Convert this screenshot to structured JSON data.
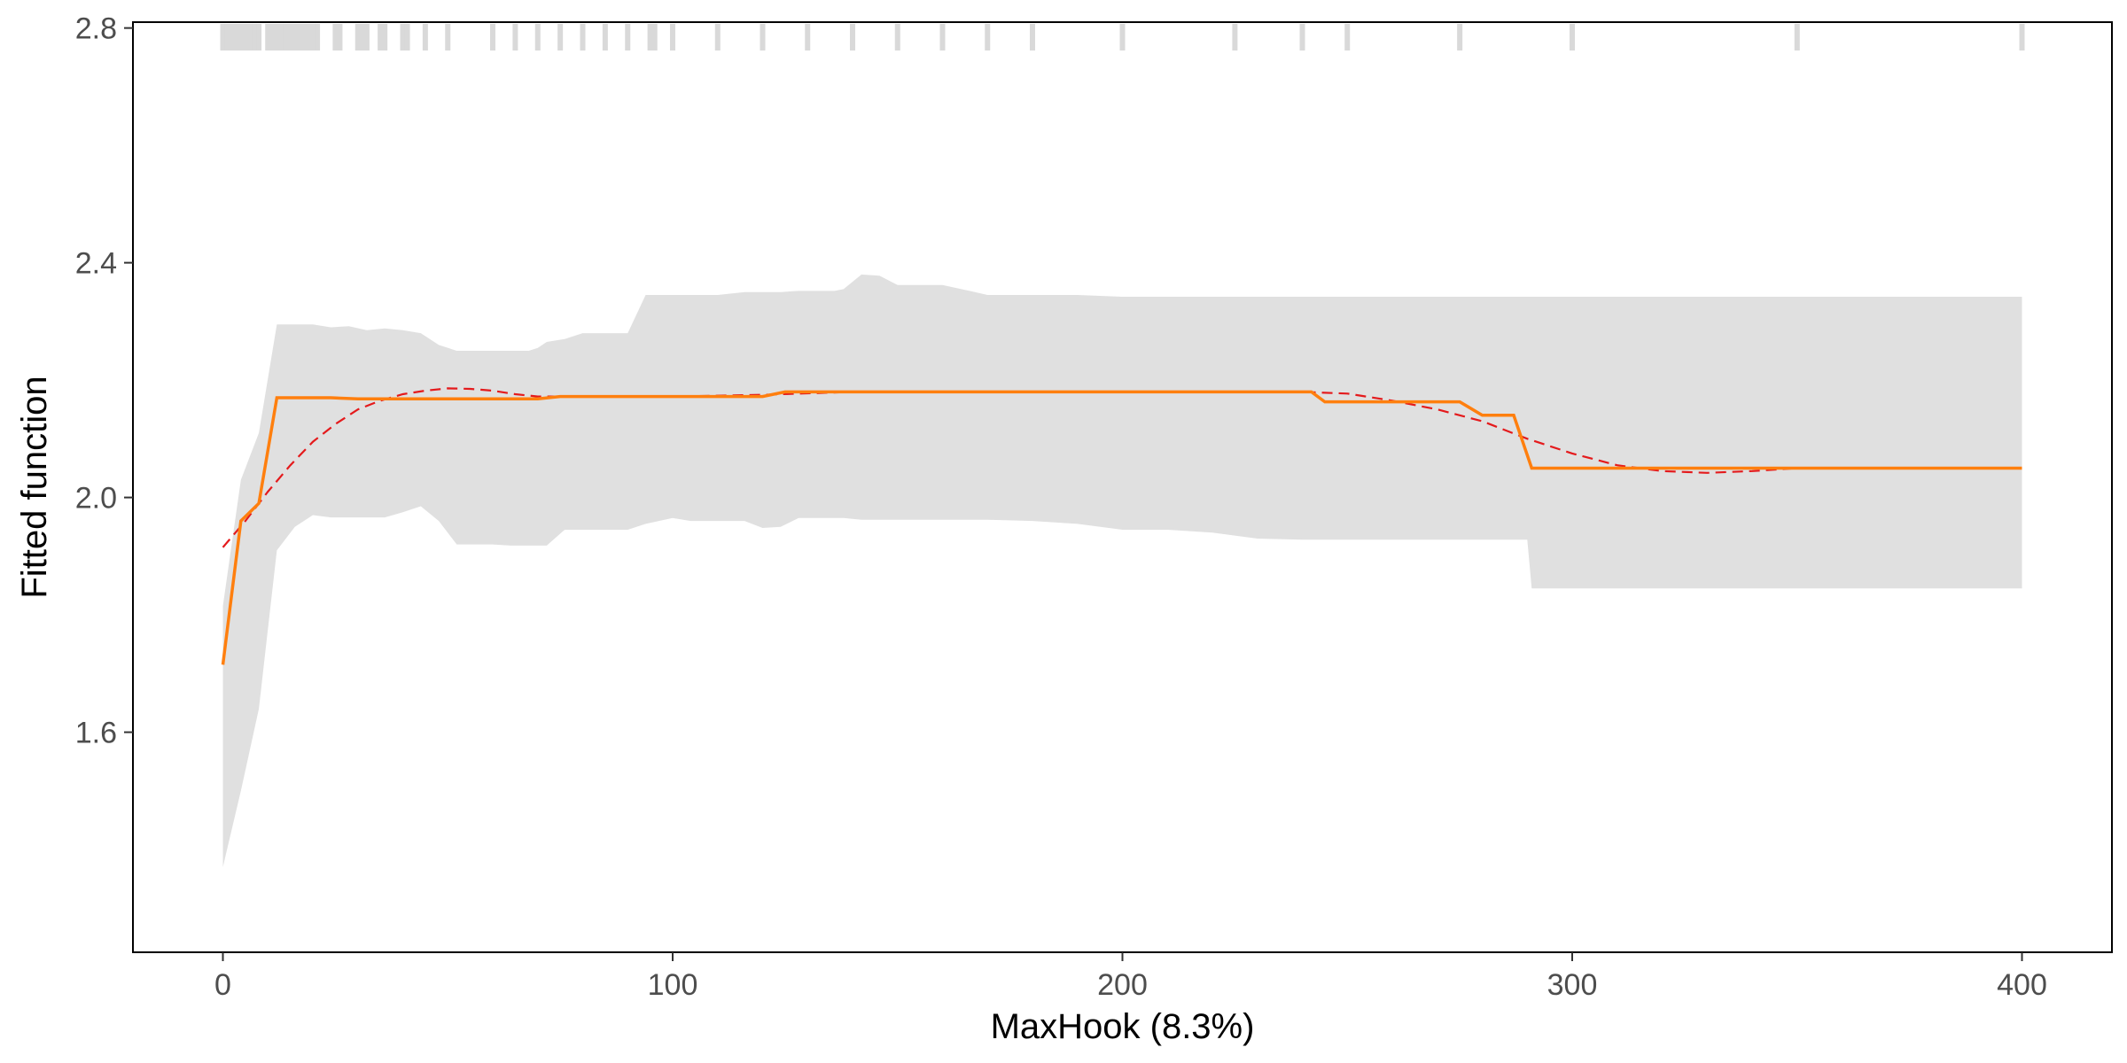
{
  "chart_data": {
    "type": "line",
    "xlabel": "MaxHook  (8.3%)",
    "ylabel": "Fitted function",
    "xlim": [
      -20,
      420
    ],
    "ylim": [
      1.225,
      2.81
    ],
    "x_ticks": [
      0,
      100,
      200,
      300,
      400
    ],
    "x_tick_labels": [
      "0",
      "100",
      "200",
      "300",
      "400"
    ],
    "y_ticks": [
      1.6,
      2.0,
      2.4,
      2.8
    ],
    "y_tick_labels": [
      "1.6",
      "2.0",
      "2.4",
      "2.8"
    ],
    "grid": false,
    "legend": "none",
    "colors": {
      "fitted": "#ff7f0e",
      "smooth": "#e41a1c",
      "band": "#e0e0e0",
      "rug": "#d9d9d9",
      "axis": "#000000"
    },
    "rug_x": [
      0,
      1,
      2,
      3,
      4,
      5,
      6,
      7,
      8,
      10,
      11,
      12,
      13,
      14,
      15,
      16,
      17,
      18,
      19,
      20,
      21,
      25,
      26,
      30,
      31,
      32,
      35,
      36,
      40,
      41,
      45,
      50,
      60,
      65,
      70,
      75,
      80,
      85,
      90,
      95,
      96,
      100,
      110,
      120,
      130,
      140,
      150,
      160,
      170,
      180,
      200,
      225,
      240,
      250,
      275,
      300,
      350,
      400
    ],
    "series": [
      {
        "name": "fitted",
        "style": "solid",
        "x": [
          0,
          4,
          8,
          12,
          20,
          24,
          30,
          40,
          50,
          60,
          70,
          75,
          80,
          90,
          100,
          110,
          120,
          125,
          130,
          140,
          150,
          160,
          170,
          180,
          190,
          200,
          210,
          220,
          230,
          240,
          242,
          245,
          250,
          260,
          270,
          275,
          280,
          287,
          291,
          300,
          320,
          350,
          380,
          400
        ],
        "y": [
          1.715,
          1.96,
          1.99,
          2.17,
          2.17,
          2.17,
          2.168,
          2.168,
          2.168,
          2.168,
          2.168,
          2.172,
          2.172,
          2.172,
          2.172,
          2.172,
          2.172,
          2.18,
          2.18,
          2.18,
          2.18,
          2.18,
          2.18,
          2.18,
          2.18,
          2.18,
          2.18,
          2.18,
          2.18,
          2.18,
          2.18,
          2.163,
          2.163,
          2.163,
          2.163,
          2.163,
          2.14,
          2.14,
          2.05,
          2.05,
          2.05,
          2.05,
          2.05,
          2.05
        ]
      },
      {
        "name": "smooth",
        "style": "dashed",
        "x": [
          0,
          5,
          10,
          15,
          20,
          25,
          30,
          35,
          40,
          45,
          50,
          55,
          60,
          65,
          70,
          80,
          90,
          100,
          120,
          140,
          160,
          180,
          200,
          220,
          240,
          250,
          260,
          270,
          280,
          290,
          300,
          310,
          320,
          330,
          340,
          350,
          370,
          400
        ],
        "y": [
          1.915,
          1.96,
          2.01,
          2.055,
          2.095,
          2.125,
          2.15,
          2.165,
          2.176,
          2.182,
          2.186,
          2.185,
          2.182,
          2.176,
          2.172,
          2.172,
          2.172,
          2.172,
          2.175,
          2.18,
          2.18,
          2.18,
          2.18,
          2.18,
          2.18,
          2.177,
          2.165,
          2.15,
          2.13,
          2.1,
          2.075,
          2.055,
          2.045,
          2.042,
          2.045,
          2.05,
          2.05,
          2.05
        ]
      }
    ],
    "band": {
      "name": "confidence-band",
      "x": [
        0,
        4,
        8,
        12,
        16,
        20,
        24,
        28,
        32,
        36,
        40,
        44,
        48,
        52,
        56,
        60,
        64,
        68,
        70,
        72,
        76,
        80,
        84,
        88,
        90,
        94,
        100,
        104,
        110,
        116,
        120,
        124,
        128,
        136,
        138,
        142,
        146,
        150,
        156,
        160,
        166,
        170,
        180,
        190,
        200,
        210,
        220,
        230,
        240,
        250,
        260,
        270,
        280,
        290,
        291,
        300,
        320,
        350,
        400
      ],
      "upper": [
        1.815,
        2.03,
        2.11,
        2.295,
        2.295,
        2.295,
        2.29,
        2.292,
        2.285,
        2.288,
        2.285,
        2.28,
        2.26,
        2.25,
        2.25,
        2.25,
        2.25,
        2.25,
        2.255,
        2.265,
        2.27,
        2.28,
        2.28,
        2.28,
        2.28,
        2.345,
        2.345,
        2.345,
        2.345,
        2.35,
        2.35,
        2.35,
        2.352,
        2.352,
        2.355,
        2.38,
        2.378,
        2.362,
        2.362,
        2.362,
        2.352,
        2.345,
        2.345,
        2.345,
        2.342,
        2.342,
        2.342,
        2.342,
        2.342,
        2.342,
        2.342,
        2.342,
        2.342,
        2.342,
        2.342,
        2.342,
        2.342,
        2.342,
        2.342
      ],
      "lower": [
        1.37,
        1.5,
        1.64,
        1.91,
        1.95,
        1.97,
        1.966,
        1.966,
        1.966,
        1.966,
        1.975,
        1.985,
        1.96,
        1.92,
        1.92,
        1.92,
        1.918,
        1.918,
        1.918,
        1.918,
        1.945,
        1.945,
        1.945,
        1.945,
        1.945,
        1.955,
        1.965,
        1.96,
        1.96,
        1.96,
        1.948,
        1.95,
        1.965,
        1.965,
        1.965,
        1.962,
        1.962,
        1.962,
        1.962,
        1.962,
        1.962,
        1.962,
        1.96,
        1.955,
        1.945,
        1.945,
        1.94,
        1.93,
        1.928,
        1.928,
        1.928,
        1.928,
        1.928,
        1.928,
        1.845,
        1.845,
        1.845,
        1.845,
        1.845
      ]
    }
  }
}
